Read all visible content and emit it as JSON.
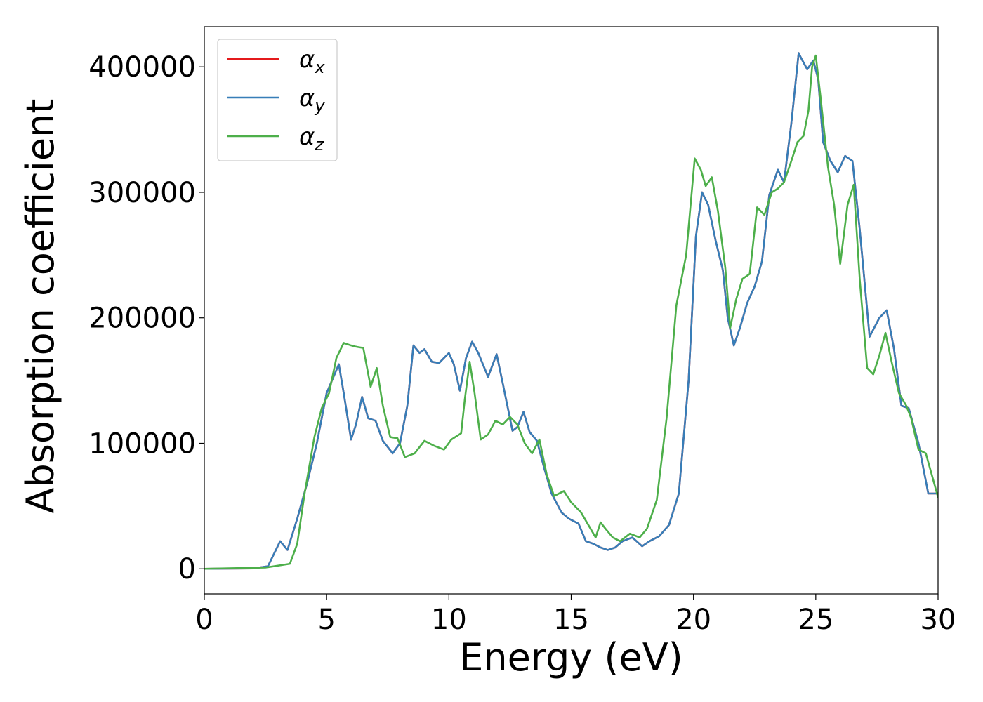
{
  "chart_data": {
    "type": "line",
    "title": "",
    "xlabel": "Energy (eV)",
    "ylabel": "Absorption coefficient",
    "xlim": [
      0,
      30
    ],
    "ylim": [
      -20000,
      432000
    ],
    "xticks": [
      0,
      5,
      10,
      15,
      20,
      25,
      30
    ],
    "yticks": [
      0,
      100000,
      200000,
      300000,
      400000
    ],
    "xtick_labels": [
      "0",
      "5",
      "10",
      "15",
      "20",
      "25",
      "30"
    ],
    "ytick_labels": [
      "0",
      "100000",
      "200000",
      "300000",
      "400000"
    ],
    "grid": false,
    "legend": {
      "position": "top-left",
      "entries": [
        {
          "symbol": "α",
          "subscript": "x",
          "color": "#e41a1c"
        },
        {
          "symbol": "α",
          "subscript": "y",
          "color": "#377eb8"
        },
        {
          "symbol": "α",
          "subscript": "z",
          "color": "#4daf4a"
        }
      ]
    },
    "series": [
      {
        "key": "alpha_x",
        "color": "#e41a1c",
        "x": [
          0,
          2.0,
          2.6,
          3.1,
          3.4,
          3.8,
          4.2,
          4.6,
          5.0,
          5.5,
          5.7,
          6.0,
          6.2,
          6.45,
          6.7,
          7.0,
          7.3,
          7.7,
          8.0,
          8.3,
          8.55,
          8.8,
          9.0,
          9.3,
          9.6,
          10.0,
          10.2,
          10.45,
          10.7,
          10.95,
          11.2,
          11.6,
          11.95,
          12.2,
          12.6,
          12.8,
          13.05,
          13.3,
          13.6,
          13.9,
          14.2,
          14.6,
          14.9,
          15.3,
          15.6,
          15.9,
          16.2,
          16.5,
          16.8,
          17.1,
          17.5,
          17.9,
          18.2,
          18.6,
          19.0,
          19.4,
          19.8,
          20.1,
          20.35,
          20.6,
          20.9,
          21.2,
          21.4,
          21.65,
          21.9,
          22.2,
          22.5,
          22.8,
          23.1,
          23.45,
          23.7,
          24.0,
          24.3,
          24.4,
          24.65,
          24.9,
          25.1,
          25.3,
          25.6,
          25.9,
          26.2,
          26.5,
          26.8,
          27.2,
          27.6,
          27.9,
          28.2,
          28.5,
          28.8,
          29.2,
          29.6,
          30.0
        ],
        "y": [
          0,
          300,
          2000,
          22000,
          15000,
          40000,
          68000,
          100000,
          140000,
          163000,
          140000,
          103000,
          115000,
          137000,
          120000,
          118000,
          102000,
          92000,
          100000,
          130000,
          178000,
          172000,
          175000,
          165000,
          164000,
          172000,
          163000,
          142000,
          168000,
          181000,
          172000,
          153000,
          171000,
          148000,
          110000,
          113000,
          125000,
          109000,
          102000,
          80000,
          60000,
          45000,
          40000,
          36000,
          22000,
          20000,
          17000,
          15000,
          17000,
          22000,
          25000,
          18000,
          22000,
          26000,
          35000,
          60000,
          150000,
          265000,
          300000,
          290000,
          262000,
          238000,
          200000,
          178000,
          192000,
          212000,
          225000,
          245000,
          298000,
          318000,
          308000,
          355000,
          411000,
          407000,
          398000,
          405000,
          390000,
          340000,
          325000,
          316000,
          329000,
          325000,
          270000,
          185000,
          200000,
          206000,
          175000,
          130000,
          128000,
          100000,
          60000,
          60000
        ]
      },
      {
        "key": "alpha_y",
        "color": "#377eb8",
        "x": [
          0,
          2.0,
          2.6,
          3.1,
          3.4,
          3.8,
          4.2,
          4.6,
          5.0,
          5.5,
          5.7,
          6.0,
          6.2,
          6.45,
          6.7,
          7.0,
          7.3,
          7.7,
          8.0,
          8.3,
          8.55,
          8.8,
          9.0,
          9.3,
          9.6,
          10.0,
          10.2,
          10.45,
          10.7,
          10.95,
          11.2,
          11.6,
          11.95,
          12.2,
          12.6,
          12.8,
          13.05,
          13.3,
          13.6,
          13.9,
          14.2,
          14.6,
          14.9,
          15.3,
          15.6,
          15.9,
          16.2,
          16.5,
          16.8,
          17.1,
          17.5,
          17.9,
          18.2,
          18.6,
          19.0,
          19.4,
          19.8,
          20.1,
          20.35,
          20.6,
          20.9,
          21.2,
          21.4,
          21.65,
          21.9,
          22.2,
          22.5,
          22.8,
          23.1,
          23.45,
          23.7,
          24.0,
          24.3,
          24.4,
          24.65,
          24.9,
          25.1,
          25.3,
          25.6,
          25.9,
          26.2,
          26.5,
          26.8,
          27.2,
          27.6,
          27.9,
          28.2,
          28.5,
          28.8,
          29.2,
          29.6,
          30.0
        ],
        "y": [
          0,
          300,
          2000,
          22000,
          15000,
          40000,
          68000,
          100000,
          140000,
          163000,
          140000,
          103000,
          115000,
          137000,
          120000,
          118000,
          102000,
          92000,
          100000,
          130000,
          178000,
          172000,
          175000,
          165000,
          164000,
          172000,
          163000,
          142000,
          168000,
          181000,
          172000,
          153000,
          171000,
          148000,
          110000,
          113000,
          125000,
          109000,
          102000,
          80000,
          60000,
          45000,
          40000,
          36000,
          22000,
          20000,
          17000,
          15000,
          17000,
          22000,
          25000,
          18000,
          22000,
          26000,
          35000,
          60000,
          150000,
          265000,
          300000,
          290000,
          262000,
          238000,
          200000,
          178000,
          192000,
          212000,
          225000,
          245000,
          298000,
          318000,
          308000,
          355000,
          411000,
          407000,
          398000,
          405000,
          390000,
          340000,
          325000,
          316000,
          329000,
          325000,
          270000,
          185000,
          200000,
          206000,
          175000,
          130000,
          128000,
          100000,
          60000,
          60000
        ]
      },
      {
        "key": "alpha_z",
        "color": "#4daf4a",
        "x": [
          0,
          2.5,
          3.5,
          3.8,
          4.1,
          4.5,
          4.8,
          5.1,
          5.4,
          5.7,
          6.0,
          6.2,
          6.5,
          6.8,
          7.05,
          7.3,
          7.6,
          7.9,
          8.2,
          8.6,
          9.0,
          9.4,
          9.8,
          10.1,
          10.5,
          10.65,
          10.85,
          11.05,
          11.3,
          11.6,
          11.9,
          12.2,
          12.5,
          12.8,
          13.1,
          13.4,
          13.7,
          14.0,
          14.3,
          14.7,
          15.0,
          15.4,
          15.7,
          16.0,
          16.2,
          16.4,
          16.7,
          17.0,
          17.4,
          17.8,
          18.1,
          18.5,
          18.9,
          19.3,
          19.7,
          20.05,
          20.3,
          20.5,
          20.75,
          21.0,
          21.3,
          21.5,
          21.75,
          22.0,
          22.3,
          22.6,
          22.9,
          23.2,
          23.45,
          23.7,
          24.0,
          24.25,
          24.5,
          24.7,
          24.85,
          25.0,
          25.2,
          25.5,
          25.75,
          26.0,
          26.3,
          26.55,
          26.8,
          27.1,
          27.35,
          27.6,
          27.85,
          28.1,
          28.4,
          28.7,
          28.9,
          29.2,
          29.5,
          30.0
        ],
        "y": [
          0,
          1000,
          4000,
          20000,
          60000,
          105000,
          128000,
          140000,
          168000,
          180000,
          178000,
          177000,
          176000,
          145000,
          160000,
          130000,
          105000,
          104000,
          89000,
          92000,
          102000,
          98000,
          95000,
          103000,
          108000,
          135000,
          165000,
          140000,
          103000,
          107000,
          118000,
          115000,
          121000,
          115000,
          100000,
          92000,
          103000,
          75000,
          58000,
          62000,
          53000,
          45000,
          35000,
          25000,
          37000,
          32000,
          25000,
          22000,
          28000,
          25000,
          32000,
          55000,
          120000,
          210000,
          250000,
          327000,
          318000,
          305000,
          312000,
          285000,
          240000,
          192000,
          215000,
          231000,
          235000,
          288000,
          282000,
          300000,
          303000,
          308000,
          325000,
          340000,
          345000,
          365000,
          400000,
          409000,
          375000,
          320000,
          290000,
          243000,
          290000,
          306000,
          230000,
          160000,
          155000,
          170000,
          188000,
          165000,
          140000,
          130000,
          120000,
          95000,
          92000,
          57000
        ]
      }
    ]
  }
}
